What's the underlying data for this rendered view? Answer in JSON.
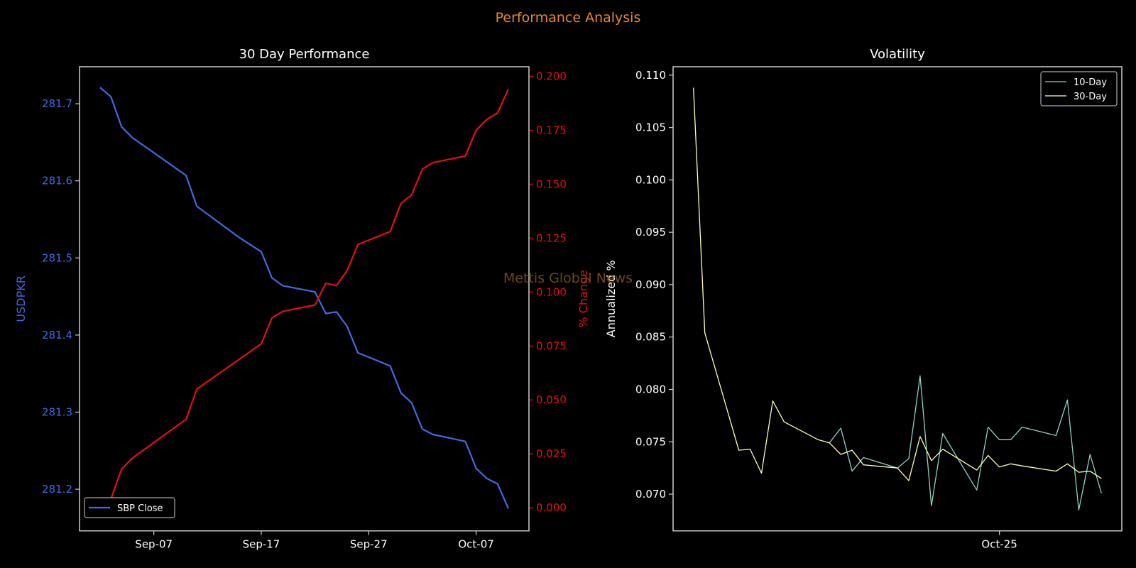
{
  "title": "Performance Analysis",
  "watermark": "Mettis Global News",
  "colors": {
    "title": "#e8892a",
    "axis": "#cccccc",
    "text": "#ffffff",
    "close": "#4169e1",
    "pct": "#e31010",
    "vol10": "#8dd3c7",
    "vol30": "#ffffb3",
    "watermark": "#6e4716"
  },
  "chart_data": [
    {
      "type": "line",
      "title": "30 Day Performance",
      "xlabel": "",
      "ylabel": "USDPKR",
      "y2label": "% Change",
      "x_unit": "days since Sep-01",
      "xlim": [
        -0.92,
        40.92
      ],
      "ylim": [
        281.146,
        281.748
      ],
      "y2lim": [
        -0.0107,
        0.2044
      ],
      "xticks": [
        {
          "x": 6,
          "label": "Sep-07"
        },
        {
          "x": 16,
          "label": "Sep-17"
        },
        {
          "x": 26,
          "label": "Sep-27"
        },
        {
          "x": 36,
          "label": "Oct-07"
        }
      ],
      "yticks": [
        {
          "v": 281.2,
          "label": "281.2"
        },
        {
          "v": 281.3,
          "label": "281.3"
        },
        {
          "v": 281.4,
          "label": "281.4"
        },
        {
          "v": 281.5,
          "label": "281.5"
        },
        {
          "v": 281.6,
          "label": "281.6"
        },
        {
          "v": 281.7,
          "label": "281.7"
        }
      ],
      "y2ticks": [
        {
          "v": 0.0,
          "label": "0.000"
        },
        {
          "v": 0.025,
          "label": "0.025"
        },
        {
          "v": 0.05,
          "label": "0.050"
        },
        {
          "v": 0.075,
          "label": "0.075"
        },
        {
          "v": 0.1,
          "label": "0.100"
        },
        {
          "v": 0.125,
          "label": "0.125"
        },
        {
          "v": 0.15,
          "label": "0.150"
        },
        {
          "v": 0.175,
          "label": "0.175"
        },
        {
          "v": 0.2,
          "label": "0.200"
        }
      ],
      "legend": {
        "placement": "lower-left",
        "entries": [
          "SBP Close"
        ]
      },
      "x": [
        1,
        2,
        3,
        4,
        9,
        10,
        14,
        16,
        17,
        18,
        21,
        22,
        23,
        24,
        25,
        28,
        29,
        30,
        31,
        32,
        35,
        36,
        37,
        38,
        39
      ],
      "series": [
        {
          "name": "SBP Close",
          "axis": "left",
          "values": [
            281.721,
            281.709,
            281.67,
            281.656,
            281.607,
            281.567,
            281.526,
            281.508,
            281.474,
            281.464,
            281.456,
            281.428,
            281.43,
            281.411,
            281.377,
            281.36,
            281.325,
            281.312,
            281.278,
            281.271,
            281.262,
            281.227,
            281.214,
            281.207,
            281.175
          ]
        },
        {
          "name": "% Change",
          "axis": "right",
          "values": [
            0.0,
            0.004,
            0.018,
            0.023,
            0.041,
            0.055,
            0.069,
            0.076,
            0.088,
            0.091,
            0.094,
            0.104,
            0.103,
            0.11,
            0.122,
            0.128,
            0.141,
            0.145,
            0.157,
            0.16,
            0.163,
            0.175,
            0.18,
            0.183,
            0.194
          ]
        }
      ]
    },
    {
      "type": "line",
      "title": "Volatility",
      "xlabel": "",
      "ylabel": "Annualized %",
      "x_unit": "days since Sep-01",
      "xlim": [
        25.2,
        64.8
      ],
      "ylim": [
        0.0665,
        0.1108
      ],
      "xticks": [
        {
          "x": 54,
          "label": "Oct-25"
        }
      ],
      "yticks": [
        {
          "v": 0.07,
          "label": "0.070"
        },
        {
          "v": 0.075,
          "label": "0.075"
        },
        {
          "v": 0.08,
          "label": "0.080"
        },
        {
          "v": 0.085,
          "label": "0.085"
        },
        {
          "v": 0.09,
          "label": "0.090"
        },
        {
          "v": 0.095,
          "label": "0.095"
        },
        {
          "v": 0.1,
          "label": "0.100"
        },
        {
          "v": 0.105,
          "label": "0.105"
        },
        {
          "v": 0.11,
          "label": "0.110"
        }
      ],
      "legend": {
        "placement": "upper-right",
        "entries": [
          "10-Day",
          "30-Day"
        ]
      },
      "series": [
        {
          "name": "10-Day",
          "x": [
            39,
            40,
            41,
            42,
            45,
            46,
            47,
            48,
            49,
            52,
            53,
            54,
            55,
            56,
            59,
            60,
            61,
            62,
            63
          ],
          "values": [
            0.0749,
            0.0763,
            0.0722,
            0.0735,
            0.0725,
            0.0734,
            0.0813,
            0.0689,
            0.0758,
            0.0704,
            0.0764,
            0.0752,
            0.0752,
            0.0764,
            0.0756,
            0.079,
            0.0685,
            0.0738,
            0.0701
          ]
        },
        {
          "name": "30-Day",
          "x": [
            27,
            28,
            31,
            32,
            33,
            34,
            35,
            38,
            39,
            40,
            41,
            42,
            45,
            46,
            47,
            48,
            49,
            52,
            53,
            54,
            55,
            56,
            59,
            60,
            61,
            62,
            63
          ],
          "values": [
            0.1088,
            0.0854,
            0.0742,
            0.0743,
            0.072,
            0.0789,
            0.0769,
            0.0752,
            0.0749,
            0.0738,
            0.0742,
            0.0728,
            0.0725,
            0.0713,
            0.0755,
            0.0732,
            0.0743,
            0.0723,
            0.0737,
            0.0726,
            0.0729,
            0.0727,
            0.0722,
            0.0729,
            0.0721,
            0.0722,
            0.0715
          ]
        }
      ]
    }
  ]
}
